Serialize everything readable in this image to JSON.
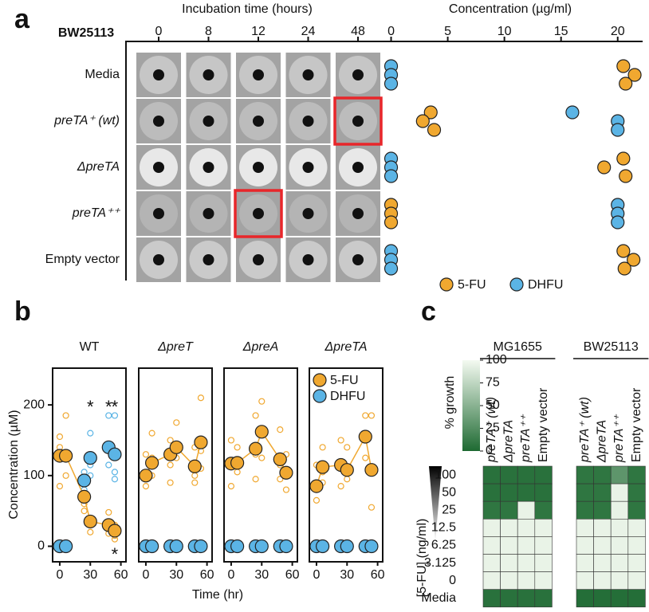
{
  "figure": {
    "panel_labels": [
      "a",
      "b",
      "c"
    ]
  },
  "chart_data": [
    {
      "type": "image-grid",
      "title": "Incubation time (hours)",
      "corner_label": "BW25113",
      "columns": [
        "0",
        "8",
        "12",
        "24",
        "48"
      ],
      "rows": [
        "Media",
        "preTA⁺ (wt)",
        "ΔpreTA",
        "preTA⁺⁺",
        "Empty vector"
      ],
      "highlighted": [
        [
          1,
          4
        ],
        [
          3,
          2
        ]
      ],
      "highlight_color": "#e8262a"
    },
    {
      "type": "dot",
      "title": "Concentration (µg/ml)",
      "xlim": [
        -0.6,
        22.2
      ],
      "xticks": [
        0,
        5,
        10,
        15,
        20
      ],
      "legend": "bottom",
      "series": [
        {
          "name": "5-FU",
          "color": "#f0a830",
          "values": [
            [
              20.5,
              21.5,
              20.7
            ],
            [
              3.5,
              2.8,
              3.8
            ],
            [
              20.5,
              18.8,
              20.7
            ],
            [
              0,
              0,
              0
            ],
            [
              20.5,
              21.4,
              20.6
            ]
          ]
        },
        {
          "name": "DHFU",
          "color": "#5bb4e5",
          "values": [
            [
              0,
              0,
              0
            ],
            [
              16,
              20,
              20
            ],
            [
              0,
              0,
              0
            ],
            [
              20,
              20,
              20
            ],
            [
              0,
              0,
              0
            ]
          ]
        }
      ]
    },
    {
      "type": "facet-line",
      "xlabel": "Time (hr)",
      "ylabel": "Concentration (µM)",
      "x": [
        0,
        6,
        24,
        30,
        48,
        54
      ],
      "xlim": [
        -7,
        65
      ],
      "xticks": [
        0,
        30,
        60
      ],
      "ylim": [
        -22,
        252
      ],
      "yticks": [
        0,
        100,
        200
      ],
      "legend_panel": 3,
      "series": [
        {
          "name": "5-FU",
          "color": "#f0a830",
          "line": true
        },
        {
          "name": "DHFU",
          "color": "#5bb4e5",
          "line": false
        }
      ],
      "panels": [
        {
          "title": "WT",
          "values": [
            [
              128,
              128,
              70,
              35,
              30,
              22
            ],
            [
              0,
              0,
              93,
              125,
              140,
              130
            ]
          ],
          "replicates": [
            [
              [
                155,
                140,
                85
              ],
              [
                185,
                125,
                100
              ],
              [
                95,
                60,
                50
              ],
              [
                40,
                30,
                20
              ],
              [
                48,
                28,
                18
              ],
              [
                30,
                15,
                10
              ]
            ],
            [
              [
                0,
                0,
                0
              ],
              [
                0,
                0,
                0
              ],
              [
                105,
                80,
                95
              ],
              [
                160,
                100,
                115
              ],
              [
                185,
                115,
                140
              ],
              [
                185,
                105,
                95
              ]
            ]
          ],
          "significance": [
            [
              null,
              null,
              null,
              null,
              null,
              "*"
            ],
            [
              null,
              null,
              null,
              "*",
              "*",
              "*"
            ]
          ]
        },
        {
          "title": "ΔpreT",
          "values": [
            [
              100,
              118,
              130,
              140,
              113,
              147
            ],
            [
              0,
              0,
              0,
              0,
              0,
              0
            ]
          ],
          "replicates": [
            [
              [
                130,
                85,
                95
              ],
              [
                160,
                125,
                100
              ],
              [
                150,
                115,
                90
              ],
              [
                175,
                140,
                125
              ],
              [
                140,
                100,
                90
              ],
              [
                210,
                135,
                110
              ]
            ],
            null
          ]
        },
        {
          "title": "ΔpreA",
          "values": [
            [
              117,
              118,
              138,
              162,
              123,
              104
            ],
            [
              0,
              0,
              0,
              0,
              0,
              0
            ]
          ],
          "replicates": [
            [
              [
                150,
                120,
                85
              ],
              [
                140,
                115,
                105
              ],
              [
                185,
                130,
                95
              ],
              [
                205,
                160,
                125
              ],
              [
                165,
                115,
                95
              ],
              [
                130,
                105,
                80
              ]
            ],
            null
          ]
        },
        {
          "title": "ΔpreTA",
          "values": [
            [
              85,
              112,
              115,
              108,
              155,
              108
            ],
            [
              0,
              0,
              0,
              0,
              0,
              0
            ]
          ],
          "replicates": [
            [
              [
                115,
                80,
                65
              ],
              [
                140,
                105,
                90
              ],
              [
                150,
                110,
                85
              ],
              [
                140,
                110,
                95
              ],
              [
                185,
                160,
                125
              ],
              [
                185,
                105,
                55
              ]
            ],
            null
          ]
        }
      ]
    },
    {
      "type": "heatmap",
      "colorbar_label": "% growth",
      "clim": [
        0,
        100
      ],
      "cticks": [
        0,
        25,
        50,
        75,
        100
      ],
      "colormap": [
        "#1e6a32",
        "#f4faf1"
      ],
      "ylabel": "[5-FU] (ng/ml)",
      "rows": [
        "100",
        "50",
        "25",
        "12.5",
        "6.25",
        "3.125",
        "0",
        "Media"
      ],
      "groups": [
        {
          "title": "MG1655",
          "columns": [
            "preTA⁺ (wt)",
            "ΔpreTA",
            "preTA⁺⁺",
            "Empty vector"
          ],
          "values": [
            [
              5,
              5,
              5,
              5
            ],
            [
              5,
              5,
              5,
              5
            ],
            [
              8,
              8,
              95,
              8
            ],
            [
              95,
              95,
              95,
              95
            ],
            [
              95,
              95,
              95,
              95
            ],
            [
              95,
              95,
              95,
              95
            ],
            [
              95,
              95,
              95,
              95
            ],
            [
              5,
              5,
              5,
              5
            ]
          ]
        },
        {
          "title": "BW25113",
          "columns": [
            "preTA⁺ (wt)",
            "ΔpreTA",
            "preTA⁺⁺",
            "Empty vector"
          ],
          "values": [
            [
              8,
              8,
              30,
              8
            ],
            [
              8,
              8,
              95,
              8
            ],
            [
              8,
              8,
              95,
              8
            ],
            [
              95,
              95,
              95,
              95
            ],
            [
              95,
              95,
              95,
              95
            ],
            [
              95,
              95,
              95,
              95
            ],
            [
              95,
              95,
              95,
              95
            ],
            [
              3,
              3,
              3,
              3
            ]
          ]
        }
      ]
    }
  ]
}
